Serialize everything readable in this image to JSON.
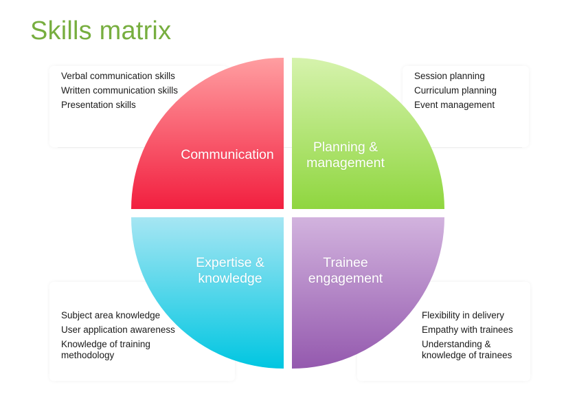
{
  "title": "Skills matrix",
  "colors": {
    "title": "#77ae3f",
    "communication": "#f52b48",
    "planning": "#95d94a",
    "expertise": "#00c8e2",
    "trainee": "#9a5fb3"
  },
  "quadrants": {
    "communication": {
      "label": "Communication",
      "skills": [
        "Verbal communication skills",
        "Written communication skills",
        "Presentation skills"
      ]
    },
    "planning": {
      "label_line1": "Planning &",
      "label_line2": "management",
      "skills": [
        "Session planning",
        "Curriculum planning",
        "Event management"
      ]
    },
    "expertise": {
      "label_line1": "Expertise &",
      "label_line2": "knowledge",
      "skills": [
        "Subject area knowledge",
        "User application awareness",
        "Knowledge of training methodology"
      ]
    },
    "trainee": {
      "label_line1": "Trainee",
      "label_line2": "engagement",
      "skills": [
        "Flexibility in delivery",
        "Empathy with trainees",
        "Understanding & knowledge of trainees"
      ]
    }
  }
}
